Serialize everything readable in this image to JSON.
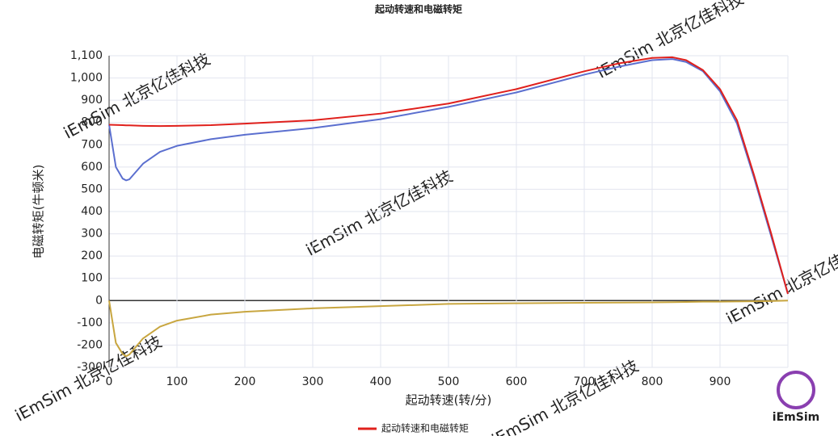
{
  "chart_data": {
    "type": "line",
    "title": "起动转速和电磁转矩",
    "x_label": "起动转速(转/分)",
    "y_label": "电磁转矩(牛顿米)",
    "watermark": "iEmSim 北京亿佳科技",
    "logo": "iEmSim",
    "x": [
      0,
      10,
      20,
      25,
      30,
      50,
      75,
      100,
      150,
      200,
      300,
      400,
      500,
      600,
      700,
      750,
      800,
      830,
      850,
      875,
      900,
      925,
      950,
      975,
      1000
    ],
    "series": [
      {
        "name": "起动转速和电磁转矩",
        "color": "#e0201c",
        "values": [
          790,
          789,
          788,
          787,
          787,
          785,
          784,
          785,
          788,
          795,
          810,
          840,
          885,
          950,
          1030,
          1065,
          1090,
          1093,
          1080,
          1035,
          950,
          810,
          565,
          305,
          30
        ]
      },
      {
        "color": "#5b6fcf",
        "values": [
          790,
          600,
          548,
          540,
          545,
          615,
          668,
          695,
          725,
          745,
          775,
          815,
          870,
          935,
          1015,
          1050,
          1080,
          1085,
          1072,
          1030,
          940,
          795,
          553,
          293,
          30
        ]
      },
      {
        "color": "#c8a640",
        "values": [
          0,
          -190,
          -240,
          -250,
          -242,
          -170,
          -117,
          -90,
          -63,
          -50,
          -35,
          -25,
          -15,
          -12,
          -10,
          -9,
          -8,
          -7,
          -6,
          -5,
          -5,
          -4,
          -3,
          -2,
          0
        ]
      }
    ],
    "xlim": [
      0,
      1000
    ],
    "xticks": [
      0,
      100,
      200,
      300,
      400,
      500,
      600,
      700,
      800,
      900
    ],
    "ylim": [
      -300,
      1100
    ],
    "yticks": [
      -300,
      -200,
      -100,
      0,
      100,
      200,
      300,
      400,
      500,
      600,
      700,
      800,
      900,
      {
        "value": 1000,
        "label": "1,000"
      },
      {
        "value": 1100,
        "label": "1,100"
      }
    ],
    "grid": true
  }
}
